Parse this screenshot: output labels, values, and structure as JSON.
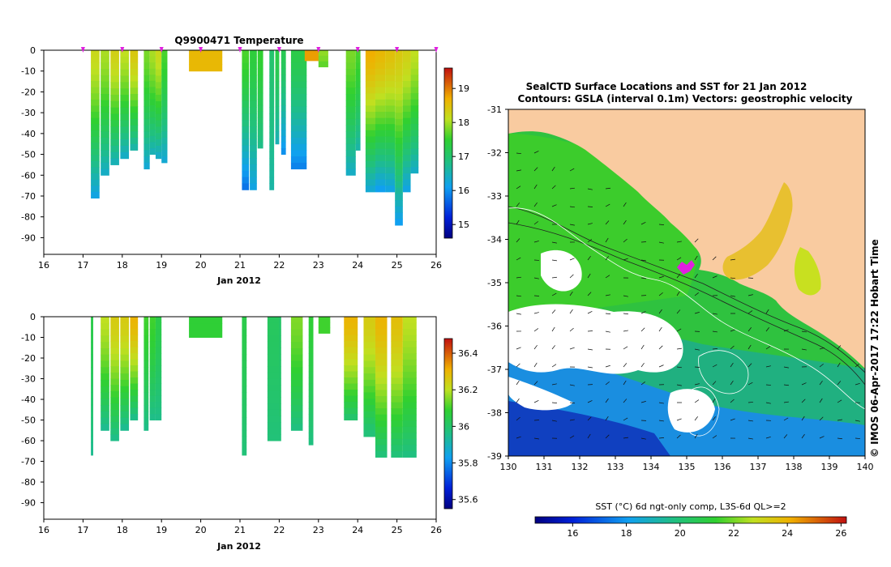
{
  "chart_data": [
    {
      "type": "heatmap",
      "title": "Q9900471  Temperature",
      "xlabel": "Jan 2012",
      "ylabel": "",
      "x_ticks": [
        16,
        17,
        18,
        19,
        20,
        21,
        22,
        23,
        24,
        25,
        26
      ],
      "xlim": [
        16,
        26
      ],
      "y_ticks": [
        0,
        -10,
        -20,
        -30,
        -40,
        -50,
        -60,
        -70,
        -80,
        -90
      ],
      "ylim": [
        -98,
        0
      ],
      "colorbar": {
        "ticks": [
          15,
          16,
          17,
          18,
          19
        ],
        "range": [
          14.6,
          19.6
        ]
      },
      "surface_markers": [
        17,
        18,
        19,
        20,
        21,
        22,
        23,
        24,
        25,
        26
      ],
      "profiles": [
        {
          "x": 17.2,
          "w": 0.22,
          "depth": 71,
          "top": 18.2,
          "bot": 16.2
        },
        {
          "x": 17.45,
          "w": 0.22,
          "depth": 60,
          "top": 18.0,
          "bot": 16.4
        },
        {
          "x": 17.7,
          "w": 0.22,
          "depth": 55,
          "top": 18.3,
          "bot": 16.5
        },
        {
          "x": 17.95,
          "w": 0.22,
          "depth": 52,
          "top": 18.1,
          "bot": 16.4
        },
        {
          "x": 18.2,
          "w": 0.2,
          "depth": 48,
          "top": 18.4,
          "bot": 16.6
        },
        {
          "x": 18.55,
          "w": 0.15,
          "depth": 57,
          "top": 17.8,
          "bot": 16.3
        },
        {
          "x": 18.7,
          "w": 0.15,
          "depth": 50,
          "top": 18.0,
          "bot": 16.5
        },
        {
          "x": 18.85,
          "w": 0.15,
          "depth": 52,
          "top": 18.2,
          "bot": 16.4
        },
        {
          "x": 19.0,
          "w": 0.15,
          "depth": 54,
          "top": 17.6,
          "bot": 16.3
        },
        {
          "x": 19.7,
          "w": 0.85,
          "depth": 10,
          "top": 18.6,
          "bot": 18.6
        },
        {
          "x": 21.05,
          "w": 0.18,
          "depth": 67,
          "top": 17.6,
          "bot": 15.8
        },
        {
          "x": 21.25,
          "w": 0.18,
          "depth": 67,
          "top": 17.4,
          "bot": 16.2
        },
        {
          "x": 21.45,
          "w": 0.14,
          "depth": 47,
          "top": 17.5,
          "bot": 16.8
        },
        {
          "x": 21.75,
          "w": 0.12,
          "depth": 67,
          "top": 17.0,
          "bot": 16.6
        },
        {
          "x": 21.9,
          "w": 0.1,
          "depth": 45,
          "top": 17.3,
          "bot": 16.5
        },
        {
          "x": 22.05,
          "w": 0.12,
          "depth": 50,
          "top": 17.2,
          "bot": 16.0
        },
        {
          "x": 22.3,
          "w": 0.4,
          "depth": 57,
          "top": 17.3,
          "bot": 15.9
        },
        {
          "x": 22.65,
          "w": 0.45,
          "depth": 5,
          "top": 18.8,
          "bot": 18.8
        },
        {
          "x": 23.0,
          "w": 0.25,
          "depth": 8,
          "top": 17.9,
          "bot": 17.7
        },
        {
          "x": 23.7,
          "w": 0.25,
          "depth": 60,
          "top": 17.8,
          "bot": 16.4
        },
        {
          "x": 23.95,
          "w": 0.12,
          "depth": 48,
          "top": 17.6,
          "bot": 16.6
        },
        {
          "x": 24.2,
          "w": 0.25,
          "depth": 68,
          "top": 18.7,
          "bot": 16.3
        },
        {
          "x": 24.45,
          "w": 0.25,
          "depth": 68,
          "top": 18.6,
          "bot": 16.1
        },
        {
          "x": 24.7,
          "w": 0.25,
          "depth": 68,
          "top": 18.5,
          "bot": 16.2
        },
        {
          "x": 24.95,
          "w": 0.2,
          "depth": 84,
          "top": 18.4,
          "bot": 16.1
        },
        {
          "x": 25.15,
          "w": 0.2,
          "depth": 68,
          "top": 18.3,
          "bot": 16.2
        },
        {
          "x": 25.35,
          "w": 0.2,
          "depth": 59,
          "top": 18.1,
          "bot": 16.4
        }
      ]
    },
    {
      "type": "heatmap",
      "title": "",
      "xlabel": "Jan 2012",
      "ylabel": "",
      "x_ticks": [
        16,
        17,
        18,
        19,
        20,
        21,
        22,
        23,
        24,
        25,
        26
      ],
      "xlim": [
        16,
        26
      ],
      "y_ticks": [
        0,
        -10,
        -20,
        -30,
        -40,
        -50,
        -60,
        -70,
        -80,
        -90
      ],
      "ylim": [
        -98,
        0
      ],
      "colorbar": {
        "ticks": [
          35.6,
          35.8,
          36,
          36.2,
          36.4
        ],
        "range": [
          35.55,
          36.48
        ]
      },
      "profiles": [
        {
          "x": 17.2,
          "w": 0.06,
          "depth": 67,
          "top": 36.05,
          "bot": 35.95
        },
        {
          "x": 17.45,
          "w": 0.22,
          "depth": 55,
          "top": 36.2,
          "bot": 35.95
        },
        {
          "x": 17.7,
          "w": 0.22,
          "depth": 60,
          "top": 36.25,
          "bot": 35.96
        },
        {
          "x": 17.95,
          "w": 0.22,
          "depth": 55,
          "top": 36.25,
          "bot": 35.95
        },
        {
          "x": 18.2,
          "w": 0.2,
          "depth": 50,
          "top": 36.3,
          "bot": 35.96
        },
        {
          "x": 18.55,
          "w": 0.12,
          "depth": 55,
          "top": 36.1,
          "bot": 35.96
        },
        {
          "x": 18.7,
          "w": 0.15,
          "depth": 50,
          "top": 36.1,
          "bot": 35.96
        },
        {
          "x": 18.85,
          "w": 0.15,
          "depth": 50,
          "top": 36.05,
          "bot": 35.96
        },
        {
          "x": 19.7,
          "w": 0.85,
          "depth": 10,
          "top": 36.08,
          "bot": 36.08
        },
        {
          "x": 21.05,
          "w": 0.12,
          "depth": 67,
          "top": 36.05,
          "bot": 35.98
        },
        {
          "x": 21.7,
          "w": 0.35,
          "depth": 60,
          "top": 36.02,
          "bot": 35.98
        },
        {
          "x": 22.0,
          "w": 0.04,
          "depth": 48,
          "top": 36.0,
          "bot": 36.0
        },
        {
          "x": 22.3,
          "w": 0.3,
          "depth": 55,
          "top": 36.15,
          "bot": 35.97
        },
        {
          "x": 22.75,
          "w": 0.12,
          "depth": 62,
          "top": 36.08,
          "bot": 35.97
        },
        {
          "x": 23.0,
          "w": 0.3,
          "depth": 8,
          "top": 36.1,
          "bot": 36.1
        },
        {
          "x": 23.65,
          "w": 0.35,
          "depth": 50,
          "top": 36.3,
          "bot": 36.0
        },
        {
          "x": 24.15,
          "w": 0.3,
          "depth": 58,
          "top": 36.25,
          "bot": 35.98
        },
        {
          "x": 24.45,
          "w": 0.3,
          "depth": 68,
          "top": 36.3,
          "bot": 35.98
        },
        {
          "x": 24.85,
          "w": 0.3,
          "depth": 68,
          "top": 36.28,
          "bot": 35.98
        },
        {
          "x": 25.15,
          "w": 0.35,
          "depth": 68,
          "top": 36.2,
          "bot": 35.97
        }
      ]
    },
    {
      "type": "heatmap",
      "title": "SealCTD Surface Locations and SST for 21 Jan 2012",
      "subtitle": "Contours: GSLA (interval 0.1m) Vectors: geostrophic velocity",
      "xlabel": "",
      "ylabel": "",
      "x_ticks": [
        130,
        131,
        132,
        133,
        134,
        135,
        136,
        137,
        138,
        139,
        140
      ],
      "y_ticks": [
        -31,
        -32,
        -33,
        -34,
        -35,
        -36,
        -37,
        -38,
        -39
      ],
      "xlim": [
        130,
        140
      ],
      "ylim": [
        -39,
        -31
      ],
      "side_label": "© IMOS 06-Apr-2017 17:22 Hobart Time",
      "seal_locations": [
        {
          "lon": 134.8,
          "lat": -34.6
        }
      ],
      "colorbar": {
        "title": "SST (°C) 6d ngt-only comp, L3S-6d QL>=2",
        "ticks": [
          16,
          18,
          20,
          22,
          24,
          26
        ],
        "range": [
          14.6,
          26.2
        ]
      }
    }
  ],
  "colors": {
    "land": "#f9cba0",
    "seal_marker": "#e020e0",
    "contour_dark": "#222222",
    "contour_light": "#ffffff"
  }
}
